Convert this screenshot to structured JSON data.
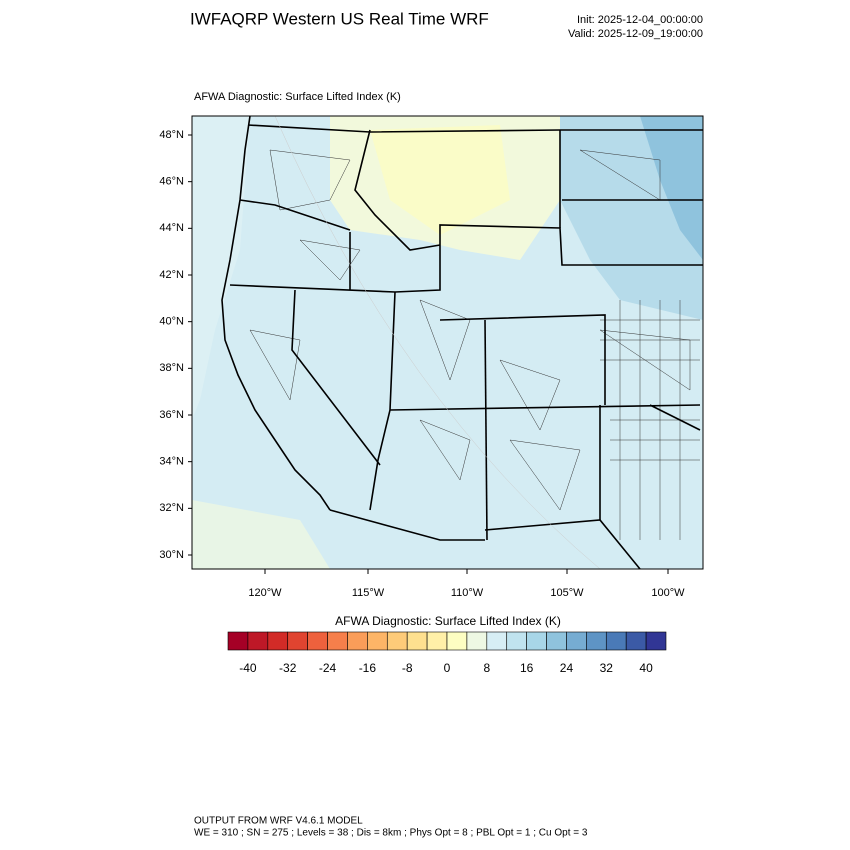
{
  "header": {
    "title": "IWFAQRP Western US Real Time WRF",
    "init": "Init: 2025-12-04_00:00:00",
    "valid": "Valid: 2025-12-09_19:00:00"
  },
  "map": {
    "title": "AFWA Diagnostic: Surface Lifted Index   (K)",
    "lat_labels": [
      "48°N",
      "46°N",
      "44°N",
      "42°N",
      "40°N",
      "38°N",
      "36°N",
      "34°N",
      "32°N",
      "30°N"
    ],
    "lon_labels": [
      "120°W",
      "115°W",
      "110°W",
      "105°W",
      "100°W"
    ]
  },
  "colorbar": {
    "title": "AFWA Diagnostic: Surface Lifted Index  (K)",
    "labels": [
      -40,
      -32,
      -24,
      -16,
      -8,
      0,
      8,
      16,
      24,
      32,
      40
    ],
    "colors": [
      "#a50026",
      "#be1827",
      "#d22b27",
      "#e04430",
      "#ee613d",
      "#f67f4b",
      "#fa9d59",
      "#fdb567",
      "#fecb79",
      "#fee08f",
      "#fff0a8",
      "#fdfec2",
      "#eef8e3",
      "#d7eef5",
      "#c0e3ef",
      "#a8d6e8",
      "#8fc3dd",
      "#76acd2",
      "#5e94c5",
      "#4a7ab7",
      "#3b5aa6",
      "#313695"
    ]
  },
  "footer": {
    "line1": "OUTPUT FROM WRF V4.6.1 MODEL",
    "line2": "WE = 310 ; SN = 275 ; Levels = 38 ; Dis = 8km ; Phys Opt = 8 ; PBL Opt = 1 ; Cu Opt = 3"
  }
}
